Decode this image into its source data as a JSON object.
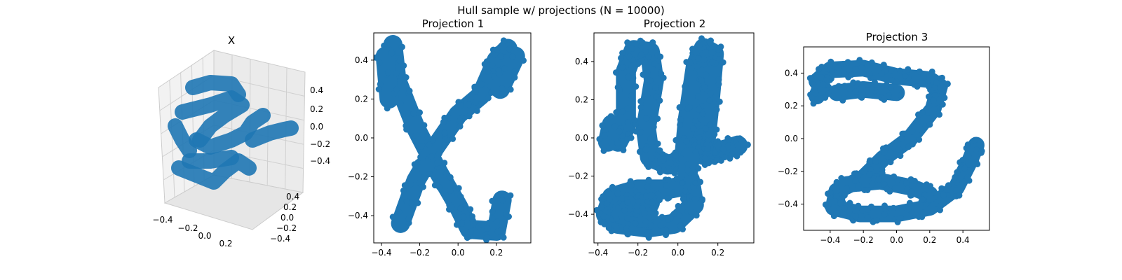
{
  "figure": {
    "suptitle": "Hull sample w/ projections (N = 10000)"
  },
  "chart_data": [
    {
      "type": "scatter",
      "projection": "3d",
      "title": "X",
      "color": "#1f77b4",
      "xlim": [
        -0.45,
        0.3
      ],
      "ylim": [
        -0.45,
        0.55
      ],
      "zlim": [
        -0.5,
        0.5
      ],
      "xticks": [
        "−0.4",
        "−0.2",
        "0.0",
        "0.2"
      ],
      "yticks": [
        "−0.4",
        "−0.2",
        "0.0",
        "0.2",
        "0.4"
      ],
      "zticks": [
        "−0.4",
        "−0.2",
        "0.0",
        "0.2",
        "0.4"
      ],
      "grid": true,
      "description_shape": "3D hull shaped like x, y, z letters"
    },
    {
      "type": "scatter",
      "title": "Projection 1",
      "color": "#1f77b4",
      "xlim": [
        -0.44,
        0.38
      ],
      "ylim": [
        -0.54,
        0.54
      ],
      "xticks": [
        "−0.4",
        "−0.2",
        "0.0",
        "0.2"
      ],
      "yticks": [
        "−0.4",
        "−0.2",
        "0.0",
        "0.2",
        "0.4"
      ],
      "strokes": [
        [
          [
            -0.34,
            0.48
          ],
          [
            -0.32,
            0.3
          ],
          [
            -0.22,
            0.05
          ],
          [
            -0.1,
            -0.18
          ],
          [
            0.0,
            -0.35
          ],
          [
            0.06,
            -0.47
          ],
          [
            0.2,
            -0.48
          ],
          [
            0.23,
            -0.32
          ]
        ],
        [
          [
            0.26,
            0.46
          ],
          [
            0.2,
            0.4
          ],
          [
            0.12,
            0.22
          ],
          [
            0.0,
            0.12
          ],
          [
            -0.12,
            -0.05
          ],
          [
            -0.22,
            -0.22
          ],
          [
            -0.3,
            -0.44
          ]
        ],
        [
          [
            -0.38,
            0.42
          ],
          [
            -0.36,
            0.2
          ]
        ],
        [
          [
            0.3,
            0.42
          ],
          [
            0.22,
            0.25
          ]
        ]
      ],
      "thickness": 0.05
    },
    {
      "type": "scatter",
      "title": "Projection 2",
      "color": "#1f77b4",
      "xlim": [
        -0.42,
        0.38
      ],
      "ylim": [
        -0.55,
        0.55
      ],
      "xticks": [
        "−0.4",
        "−0.2",
        "0.0",
        "0.2"
      ],
      "yticks": [
        "−0.4",
        "−0.2",
        "0.0",
        "0.2",
        "0.4"
      ],
      "strokes": [
        [
          [
            -0.3,
            -0.02
          ],
          [
            -0.26,
            0.06
          ],
          [
            -0.26,
            0.35
          ],
          [
            -0.22,
            0.46
          ],
          [
            -0.14,
            0.45
          ],
          [
            -0.12,
            0.3
          ],
          [
            -0.16,
            0.05
          ],
          [
            -0.14,
            -0.1
          ],
          [
            -0.05,
            -0.14
          ],
          [
            0.03,
            -0.12
          ],
          [
            0.05,
            0.1
          ],
          [
            0.09,
            0.38
          ],
          [
            0.13,
            0.47
          ],
          [
            0.18,
            0.44
          ],
          [
            0.16,
            0.2
          ],
          [
            0.14,
            0.0
          ],
          [
            0.12,
            -0.05
          ],
          [
            0.13,
            -0.09
          ],
          [
            0.17,
            -0.08
          ],
          [
            0.24,
            -0.06
          ],
          [
            0.3,
            -0.04
          ]
        ],
        [
          [
            -0.35,
            -0.02
          ],
          [
            -0.33,
            0.07
          ]
        ],
        [
          [
            0.06,
            -0.1
          ],
          [
            0.04,
            -0.25
          ],
          [
            -0.06,
            -0.27
          ],
          [
            -0.2,
            -0.27
          ],
          [
            -0.33,
            -0.31
          ],
          [
            -0.36,
            -0.4
          ],
          [
            -0.3,
            -0.45
          ],
          [
            -0.15,
            -0.47
          ],
          [
            -0.02,
            -0.45
          ],
          [
            0.08,
            -0.35
          ],
          [
            0.06,
            -0.22
          ]
        ],
        [
          [
            -0.28,
            -0.4
          ],
          [
            -0.22,
            -0.36
          ],
          [
            -0.14,
            -0.34
          ],
          [
            -0.18,
            -0.42
          ]
        ]
      ],
      "thickness": 0.05
    },
    {
      "type": "scatter",
      "title": "Projection 3",
      "color": "#1f77b4",
      "xlim": [
        -0.56,
        0.56
      ],
      "ylim": [
        -0.56,
        0.56
      ],
      "xticks": [
        "−0.4",
        "−0.2",
        "0.0",
        "0.2",
        "0.4"
      ],
      "yticks": [
        "−0.4",
        "−0.2",
        "0.0",
        "0.2",
        "0.4"
      ],
      "strokes": [
        [
          [
            -0.48,
            0.35
          ],
          [
            -0.4,
            0.42
          ],
          [
            -0.2,
            0.43
          ],
          [
            0.0,
            0.38
          ],
          [
            0.2,
            0.36
          ],
          [
            0.26,
            0.32
          ],
          [
            0.22,
            0.18
          ],
          [
            0.08,
            0.0
          ],
          [
            -0.08,
            -0.12
          ],
          [
            -0.2,
            -0.24
          ],
          [
            -0.36,
            -0.32
          ],
          [
            -0.38,
            -0.42
          ],
          [
            -0.22,
            -0.46
          ],
          [
            0.0,
            -0.46
          ],
          [
            0.2,
            -0.42
          ],
          [
            0.36,
            -0.3
          ],
          [
            0.44,
            -0.14
          ],
          [
            0.48,
            -0.04
          ]
        ],
        [
          [
            -0.48,
            0.26
          ],
          [
            -0.45,
            0.33
          ]
        ],
        [
          [
            -0.36,
            0.28
          ],
          [
            -0.2,
            0.3
          ],
          [
            0.0,
            0.28
          ]
        ],
        [
          [
            -0.3,
            -0.28
          ],
          [
            -0.1,
            -0.26
          ],
          [
            0.1,
            -0.3
          ],
          [
            0.2,
            -0.34
          ]
        ]
      ],
      "thickness": 0.05
    }
  ]
}
